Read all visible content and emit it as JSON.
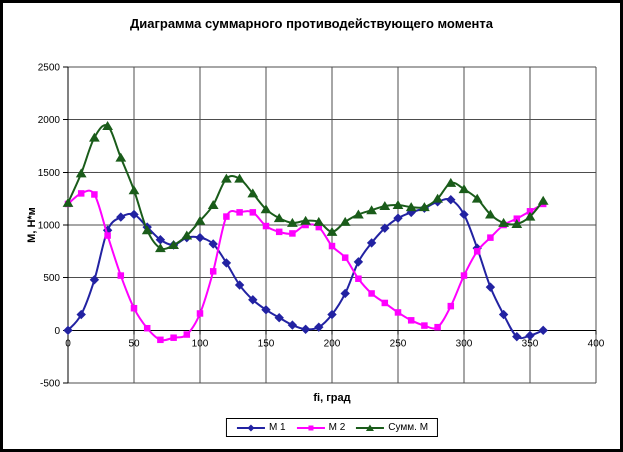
{
  "chart_data": {
    "type": "line",
    "title": "Диаграмма суммарного противодействующего момента",
    "xlabel": "fi, град",
    "ylabel": "М, Н*м",
    "xlim": [
      0,
      400
    ],
    "ylim": [
      -500,
      2500
    ],
    "x_ticks": [
      0,
      50,
      100,
      150,
      200,
      250,
      300,
      350,
      400
    ],
    "y_ticks": [
      -500,
      0,
      500,
      1000,
      1500,
      2000,
      2500
    ],
    "grid": true,
    "legend_position": "bottom-center",
    "grid_color": "#4D4D4D",
    "axis_color": "#000000",
    "background_color": "#FFFFFF",
    "x": [
      0,
      10,
      20,
      30,
      40,
      50,
      60,
      70,
      80,
      90,
      100,
      110,
      120,
      130,
      140,
      150,
      160,
      170,
      180,
      190,
      200,
      210,
      220,
      230,
      240,
      250,
      260,
      270,
      280,
      290,
      300,
      310,
      320,
      330,
      340,
      350,
      360
    ],
    "series": [
      {
        "name": "М 1",
        "color": "#2222A2",
        "marker": "diamond",
        "values": [
          0,
          150,
          480,
          950,
          1075,
          1100,
          980,
          860,
          810,
          880,
          880,
          820,
          640,
          430,
          290,
          195,
          120,
          50,
          10,
          30,
          150,
          350,
          650,
          830,
          970,
          1065,
          1120,
          1160,
          1220,
          1240,
          1100,
          780,
          410,
          150,
          -60,
          -50,
          0
        ]
      },
      {
        "name": "М 2",
        "color": "#FF00FF",
        "marker": "square",
        "values": [
          1200,
          1300,
          1290,
          900,
          520,
          210,
          20,
          -90,
          -70,
          -40,
          160,
          560,
          1080,
          1120,
          1120,
          990,
          935,
          920,
          1000,
          980,
          800,
          690,
          490,
          350,
          260,
          170,
          95,
          45,
          30,
          230,
          520,
          750,
          880,
          1000,
          1060,
          1130,
          1200
        ]
      },
      {
        "name": "Сумм. М",
        "color": "#1A5C1A",
        "marker": "triangle",
        "values": [
          1210,
          1490,
          1830,
          1940,
          1640,
          1330,
          950,
          780,
          810,
          900,
          1040,
          1190,
          1440,
          1440,
          1300,
          1150,
          1065,
          1020,
          1040,
          1030,
          935,
          1030,
          1100,
          1140,
          1180,
          1190,
          1170,
          1170,
          1250,
          1400,
          1340,
          1250,
          1100,
          1020,
          1010,
          1080,
          1230
        ]
      }
    ]
  }
}
